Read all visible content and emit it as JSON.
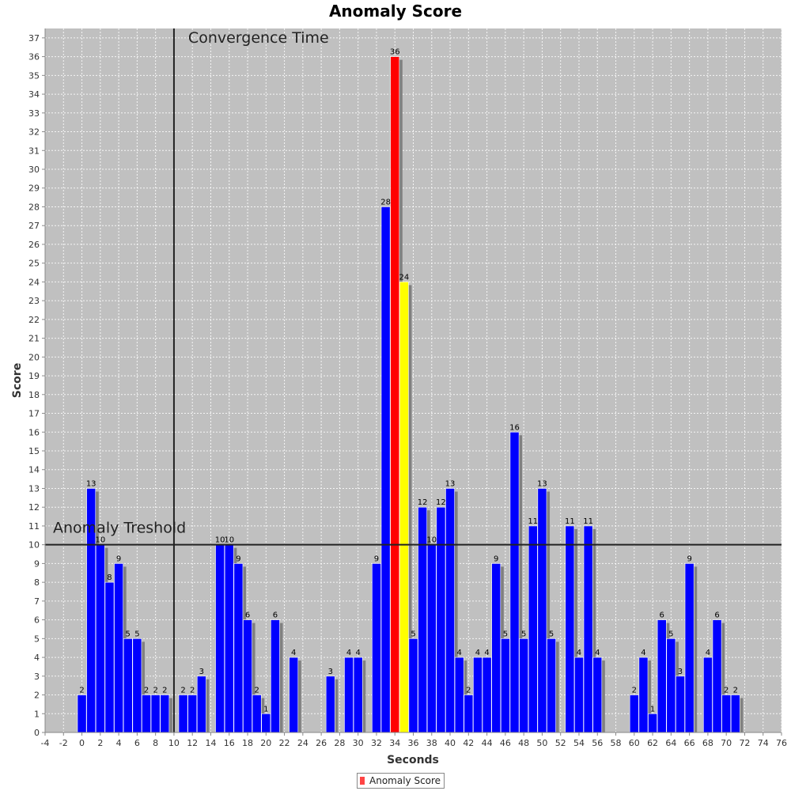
{
  "chart_data": {
    "type": "bar",
    "title": "Anomaly Score",
    "xlabel": "Seconds",
    "ylabel": "Score",
    "xlim": [
      -4,
      76
    ],
    "ylim": [
      0,
      37.5
    ],
    "x_ticks": [
      -4,
      -2,
      0,
      2,
      4,
      6,
      8,
      10,
      12,
      14,
      16,
      18,
      20,
      22,
      24,
      26,
      28,
      30,
      32,
      34,
      36,
      38,
      40,
      42,
      44,
      46,
      48,
      50,
      52,
      54,
      56,
      58,
      60,
      62,
      64,
      66,
      68,
      70,
      72,
      74,
      76
    ],
    "y_ticks": [
      0,
      1,
      2,
      3,
      4,
      5,
      6,
      7,
      8,
      9,
      10,
      11,
      12,
      13,
      14,
      15,
      16,
      17,
      18,
      19,
      20,
      21,
      22,
      23,
      24,
      25,
      26,
      27,
      28,
      29,
      30,
      31,
      32,
      33,
      34,
      35,
      36,
      37
    ],
    "grid": true,
    "legend_position": "bottom-center",
    "series": [
      {
        "name": "Anomaly Score",
        "color": "#0000ff",
        "points": [
          {
            "x": 0,
            "y": 2
          },
          {
            "x": 1,
            "y": 13
          },
          {
            "x": 2,
            "y": 10
          },
          {
            "x": 3,
            "y": 8
          },
          {
            "x": 4,
            "y": 9
          },
          {
            "x": 5,
            "y": 5
          },
          {
            "x": 6,
            "y": 5
          },
          {
            "x": 7,
            "y": 2
          },
          {
            "x": 8,
            "y": 2
          },
          {
            "x": 9,
            "y": 2
          },
          {
            "x": 11,
            "y": 2
          },
          {
            "x": 12,
            "y": 2
          },
          {
            "x": 13,
            "y": 3
          },
          {
            "x": 15,
            "y": 10
          },
          {
            "x": 16,
            "y": 10
          },
          {
            "x": 17,
            "y": 9
          },
          {
            "x": 18,
            "y": 6
          },
          {
            "x": 19,
            "y": 2
          },
          {
            "x": 20,
            "y": 1
          },
          {
            "x": 21,
            "y": 6
          },
          {
            "x": 23,
            "y": 4
          },
          {
            "x": 27,
            "y": 3
          },
          {
            "x": 29,
            "y": 4
          },
          {
            "x": 30,
            "y": 4
          },
          {
            "x": 32,
            "y": 9
          },
          {
            "x": 33,
            "y": 28
          },
          {
            "x": 34,
            "y": 36,
            "color": "#ff0000"
          },
          {
            "x": 35,
            "y": 24,
            "color": "#ffff00"
          },
          {
            "x": 36,
            "y": 5
          },
          {
            "x": 37,
            "y": 12
          },
          {
            "x": 38,
            "y": 10
          },
          {
            "x": 39,
            "y": 12
          },
          {
            "x": 40,
            "y": 13
          },
          {
            "x": 41,
            "y": 4
          },
          {
            "x": 42,
            "y": 2
          },
          {
            "x": 43,
            "y": 4
          },
          {
            "x": 44,
            "y": 4
          },
          {
            "x": 45,
            "y": 9
          },
          {
            "x": 46,
            "y": 5
          },
          {
            "x": 47,
            "y": 16
          },
          {
            "x": 48,
            "y": 5
          },
          {
            "x": 49,
            "y": 11
          },
          {
            "x": 50,
            "y": 13
          },
          {
            "x": 51,
            "y": 5
          },
          {
            "x": 53,
            "y": 11
          },
          {
            "x": 54,
            "y": 4
          },
          {
            "x": 55,
            "y": 11
          },
          {
            "x": 56,
            "y": 4
          },
          {
            "x": 60,
            "y": 2
          },
          {
            "x": 61,
            "y": 4
          },
          {
            "x": 62,
            "y": 1
          },
          {
            "x": 63,
            "y": 6
          },
          {
            "x": 64,
            "y": 5
          },
          {
            "x": 65,
            "y": 3
          },
          {
            "x": 66,
            "y": 9
          },
          {
            "x": 68,
            "y": 4
          },
          {
            "x": 69,
            "y": 6
          },
          {
            "x": 70,
            "y": 2
          },
          {
            "x": 71,
            "y": 2
          }
        ]
      }
    ],
    "markers": [
      {
        "orientation": "vertical",
        "value": 10,
        "label": "Convergence Time"
      },
      {
        "orientation": "horizontal",
        "value": 10,
        "label": "Anomaly Treshold"
      }
    ]
  },
  "legend": {
    "label": "Anomaly Score",
    "color": "#ff4444"
  }
}
